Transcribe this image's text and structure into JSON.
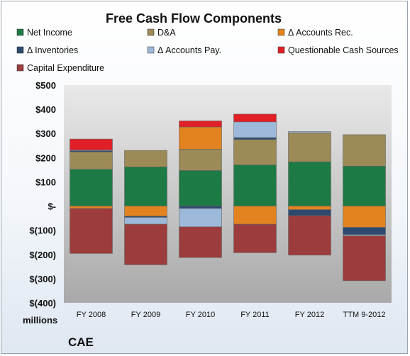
{
  "chart_data": {
    "type": "bar",
    "stacked": true,
    "title": "Free Cash Flow Components",
    "unit_label": "millions",
    "company": "CAE",
    "categories": [
      "FY 2008",
      "FY 2009",
      "FY 2010",
      "FY 2011",
      "FY 2012",
      "TTM 9-2012"
    ],
    "ylim": [
      -400,
      500
    ],
    "yticks": [
      500,
      400,
      300,
      200,
      100,
      0,
      -100,
      -200,
      -300,
      -400
    ],
    "ytick_labels": [
      "$500",
      "$400",
      "$300",
      "$200",
      "$100",
      "$-",
      "$(100)",
      "$(200)",
      "$(300)",
      "$(400)"
    ],
    "legend_position": "top",
    "grid": false,
    "series": [
      {
        "name": "Net Income",
        "color": "#1e7a44",
        "values": [
          152,
          162,
          147,
          170,
          183,
          165
        ]
      },
      {
        "name": "D&A",
        "color": "#9c8a57",
        "values": [
          72,
          68,
          88,
          105,
          120,
          130
        ]
      },
      {
        "name": "Δ Accounts Rec.",
        "color": "#e3831f",
        "values": [
          -10,
          -42,
          92,
          -75,
          -15,
          -88
        ]
      },
      {
        "name": "Δ Inventories",
        "color": "#2d4a6e",
        "values": [
          5,
          -5,
          -10,
          8,
          -25,
          -30
        ]
      },
      {
        "name": "Δ Accounts Pay.",
        "color": "#9db9da",
        "values": [
          3,
          -28,
          -76,
          65,
          5,
          -5
        ]
      },
      {
        "name": "Questionable Cash Sources",
        "color": "#e01f26",
        "values": [
          45,
          0,
          25,
          32,
          0,
          0
        ]
      },
      {
        "name": "Capital Expenditure",
        "color": "#9c3c3c",
        "values": [
          -186,
          -168,
          -127,
          -118,
          -163,
          -186
        ]
      }
    ]
  }
}
